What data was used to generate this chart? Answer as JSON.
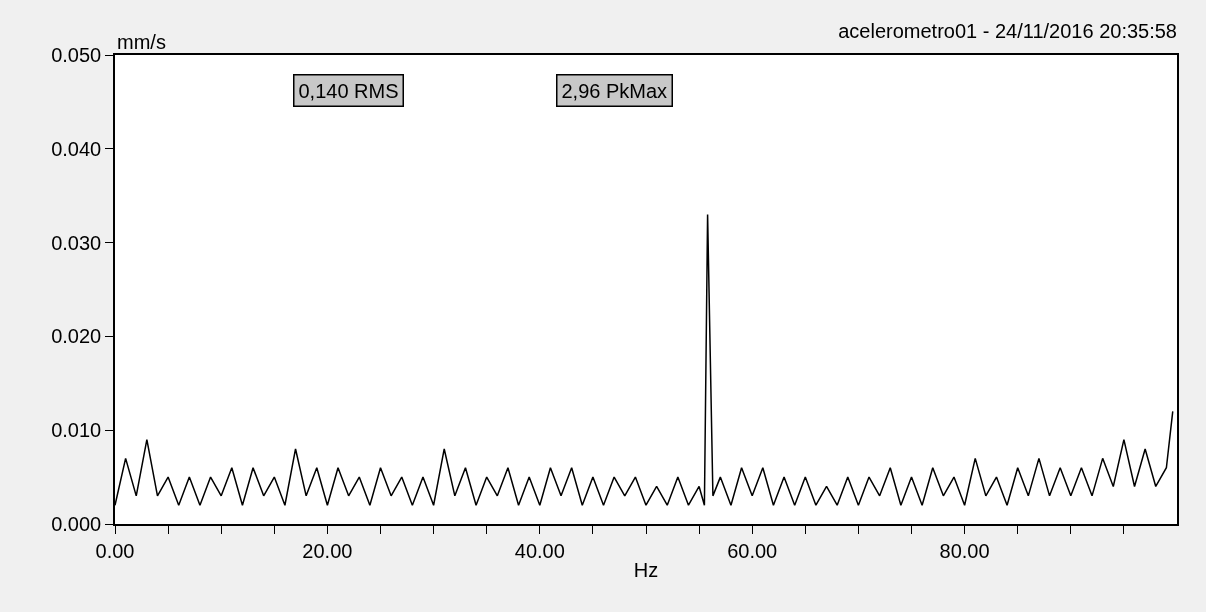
{
  "chart_data": {
    "type": "line",
    "title": "acelerometro01 - 24/11/2016 20:35:58",
    "ylabel": "mm/s",
    "xlabel": "Hz",
    "annotations": [
      "0,140 RMS",
      "2,96 PkMax"
    ],
    "x": [
      0,
      1,
      2,
      3,
      4,
      5,
      6,
      7,
      8,
      9,
      10,
      11,
      12,
      13,
      14,
      15,
      16,
      17,
      18,
      19,
      20,
      21,
      22,
      23,
      24,
      25,
      26,
      27,
      28,
      29,
      30,
      31,
      32,
      33,
      34,
      35,
      36,
      37,
      38,
      39,
      40,
      41,
      42,
      43,
      44,
      45,
      46,
      47,
      48,
      49,
      50,
      51,
      52,
      53,
      54,
      55,
      55.5,
      55.8,
      56.0,
      56.3,
      57,
      58,
      59,
      60,
      61,
      62,
      63,
      64,
      65,
      66,
      67,
      68,
      69,
      70,
      71,
      72,
      73,
      74,
      75,
      76,
      77,
      78,
      79,
      80,
      81,
      82,
      83,
      84,
      85,
      86,
      87,
      88,
      89,
      90,
      91,
      92,
      93,
      94,
      95,
      96,
      97,
      98,
      99,
      99.6
    ],
    "series": [
      {
        "color": "#000000",
        "values": [
          0.002,
          0.007,
          0.003,
          0.009,
          0.003,
          0.005,
          0.002,
          0.005,
          0.002,
          0.005,
          0.003,
          0.006,
          0.002,
          0.006,
          0.003,
          0.005,
          0.002,
          0.008,
          0.003,
          0.006,
          0.002,
          0.006,
          0.003,
          0.005,
          0.002,
          0.006,
          0.003,
          0.005,
          0.002,
          0.005,
          0.002,
          0.008,
          0.003,
          0.006,
          0.002,
          0.005,
          0.003,
          0.006,
          0.002,
          0.005,
          0.002,
          0.006,
          0.003,
          0.006,
          0.002,
          0.005,
          0.002,
          0.005,
          0.003,
          0.005,
          0.002,
          0.004,
          0.002,
          0.005,
          0.002,
          0.004,
          0.002,
          0.033,
          0.021,
          0.003,
          0.005,
          0.002,
          0.006,
          0.003,
          0.006,
          0.002,
          0.005,
          0.002,
          0.005,
          0.002,
          0.004,
          0.002,
          0.005,
          0.002,
          0.005,
          0.003,
          0.006,
          0.002,
          0.005,
          0.002,
          0.006,
          0.003,
          0.005,
          0.002,
          0.007,
          0.003,
          0.005,
          0.002,
          0.006,
          0.003,
          0.007,
          0.003,
          0.006,
          0.003,
          0.006,
          0.003,
          0.007,
          0.004,
          0.009,
          0.004,
          0.008,
          0.004,
          0.006,
          0.012
        ]
      }
    ],
    "xlim": [
      0,
      100
    ],
    "xticks": [
      {
        "value": 0,
        "label": "0.00"
      },
      {
        "value": 5,
        "label": null
      },
      {
        "value": 10,
        "label": null
      },
      {
        "value": 15,
        "label": null
      },
      {
        "value": 20,
        "label": "20.00"
      },
      {
        "value": 25,
        "label": null
      },
      {
        "value": 30,
        "label": null
      },
      {
        "value": 35,
        "label": null
      },
      {
        "value": 40,
        "label": "40.00"
      },
      {
        "value": 45,
        "label": null
      },
      {
        "value": 50,
        "label": null
      },
      {
        "value": 55,
        "label": null
      },
      {
        "value": 60,
        "label": "60.00"
      },
      {
        "value": 65,
        "label": null
      },
      {
        "value": 70,
        "label": null
      },
      {
        "value": 75,
        "label": null
      },
      {
        "value": 80,
        "label": "80.00"
      },
      {
        "value": 85,
        "label": null
      },
      {
        "value": 90,
        "label": null
      },
      {
        "value": 95,
        "label": null
      }
    ],
    "ylim": [
      0,
      0.05
    ],
    "yticks": [
      {
        "value": 0,
        "label": "0.000"
      },
      {
        "value": 0.01,
        "label": "0.010"
      },
      {
        "value": 0.02,
        "label": "0.020"
      },
      {
        "value": 0.03,
        "label": "0.030"
      },
      {
        "value": 0.04,
        "label": "0.040"
      },
      {
        "value": 0.05,
        "label": "0.050"
      }
    ],
    "grid": false
  }
}
